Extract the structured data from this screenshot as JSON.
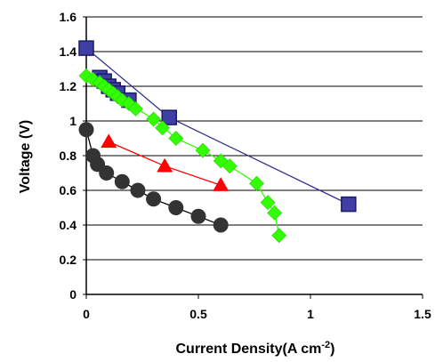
{
  "chart_data": {
    "type": "scatter",
    "xlabel": "Current Density(A cm",
    "xlabel_sup": "-2",
    "xlabel_end": ")",
    "ylabel": "Voltage (V)",
    "xlim": [
      0,
      1.5
    ],
    "ylim": [
      0,
      1.6
    ],
    "x_ticks": [
      0,
      0.5,
      1,
      1.5
    ],
    "x_tick_labels": [
      "0",
      "0.5",
      "1",
      "1.5"
    ],
    "y_ticks": [
      0,
      0.2,
      0.4,
      0.6,
      0.8,
      1.0,
      1.2,
      1.4,
      1.6
    ],
    "y_tick_labels": [
      "0",
      "0.2",
      "0.4",
      "0.6",
      "0.8",
      "1",
      "1.2",
      "1.4",
      "1.6"
    ],
    "grid": "horizontal",
    "series": [
      {
        "marker": "square",
        "color": "#2e3192",
        "line_color": "#2e3192",
        "points": [
          [
            0,
            1.42
          ],
          [
            0.06,
            1.25
          ],
          [
            0.08,
            1.23
          ],
          [
            0.1,
            1.2
          ],
          [
            0.12,
            1.18
          ],
          [
            0.14,
            1.16
          ],
          [
            0.19,
            1.12
          ],
          [
            0.37,
            1.02
          ],
          [
            1.17,
            0.52
          ]
        ],
        "line_points": [
          [
            0,
            1.42
          ],
          [
            0.37,
            1.02
          ],
          [
            1.17,
            0.52
          ]
        ]
      },
      {
        "marker": "diamond",
        "color": "#33ff00",
        "line_color": "#33ff00",
        "points": [
          [
            0,
            1.26
          ],
          [
            0.03,
            1.24
          ],
          [
            0.06,
            1.22
          ],
          [
            0.08,
            1.2
          ],
          [
            0.1,
            1.18
          ],
          [
            0.12,
            1.16
          ],
          [
            0.14,
            1.14
          ],
          [
            0.16,
            1.12
          ],
          [
            0.19,
            1.1
          ],
          [
            0.22,
            1.07
          ],
          [
            0.3,
            1.01
          ],
          [
            0.34,
            0.96
          ],
          [
            0.4,
            0.9
          ],
          [
            0.52,
            0.83
          ],
          [
            0.6,
            0.77
          ],
          [
            0.64,
            0.74
          ],
          [
            0.76,
            0.64
          ],
          [
            0.81,
            0.53
          ],
          [
            0.84,
            0.47
          ],
          [
            0.86,
            0.34
          ]
        ],
        "line_points": [
          [
            0,
            1.26
          ],
          [
            0.06,
            1.22
          ],
          [
            0.12,
            1.16
          ],
          [
            0.19,
            1.1
          ],
          [
            0.3,
            1.01
          ],
          [
            0.4,
            0.9
          ],
          [
            0.52,
            0.83
          ],
          [
            0.64,
            0.74
          ],
          [
            0.76,
            0.64
          ],
          [
            0.81,
            0.53
          ],
          [
            0.84,
            0.47
          ],
          [
            0.86,
            0.34
          ]
        ]
      },
      {
        "marker": "triangle",
        "color": "#ff0000",
        "line_color": "#ff0000",
        "points": [
          [
            0.1,
            0.88
          ],
          [
            0.35,
            0.74
          ],
          [
            0.6,
            0.63
          ]
        ],
        "line_points": [
          [
            0.1,
            0.88
          ],
          [
            0.35,
            0.74
          ],
          [
            0.6,
            0.63
          ]
        ]
      },
      {
        "marker": "circle",
        "color": "#333333",
        "line_color": "#000000",
        "points": [
          [
            0,
            0.95
          ],
          [
            0.03,
            0.8
          ],
          [
            0.05,
            0.75
          ],
          [
            0.09,
            0.7
          ],
          [
            0.16,
            0.65
          ],
          [
            0.23,
            0.6
          ],
          [
            0.3,
            0.55
          ],
          [
            0.4,
            0.5
          ],
          [
            0.5,
            0.45
          ],
          [
            0.6,
            0.4
          ]
        ],
        "line_points": [
          [
            0,
            0.95
          ],
          [
            0.03,
            0.8
          ],
          [
            0.05,
            0.75
          ],
          [
            0.09,
            0.7
          ],
          [
            0.16,
            0.65
          ],
          [
            0.23,
            0.6
          ],
          [
            0.3,
            0.55
          ],
          [
            0.4,
            0.5
          ],
          [
            0.5,
            0.45
          ],
          [
            0.6,
            0.4
          ]
        ]
      }
    ]
  }
}
